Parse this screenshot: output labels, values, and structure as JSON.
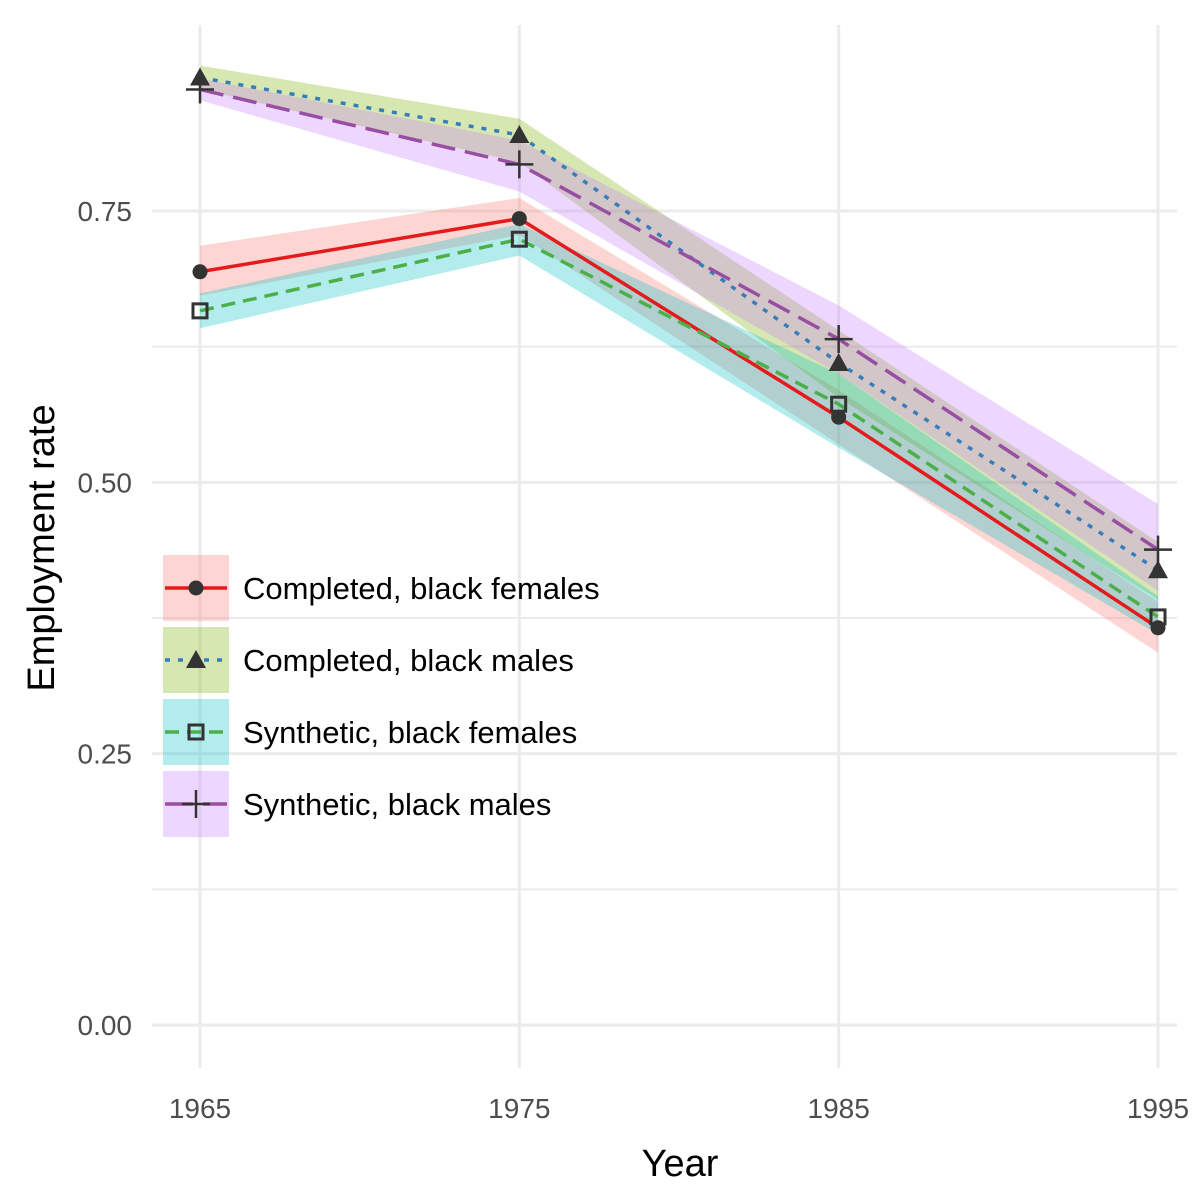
{
  "chart_data": {
    "type": "line",
    "xlabel": "Year",
    "ylabel": "Employment rate",
    "x": [
      1965,
      1975,
      1985,
      1995
    ],
    "xlim": [
      1965,
      1995
    ],
    "ylim": [
      0,
      0.8
    ],
    "x_ticks": [
      "1965",
      "1975",
      "1985",
      "1995"
    ],
    "y_ticks": [
      "0.00",
      "0.25",
      "0.50",
      "0.75"
    ],
    "grid": true,
    "legend_position": "left-center",
    "series": [
      {
        "name": "Completed, black females",
        "values": [
          0.694,
          0.743,
          0.56,
          0.366
        ],
        "lower": [
          0.672,
          0.728,
          0.535,
          0.343
        ],
        "upper": [
          0.718,
          0.762,
          0.585,
          0.39
        ],
        "line_color": "#e41a1c",
        "fill_color": "#f8766d",
        "dash": "solid",
        "marker": "circle"
      },
      {
        "name": "Completed, black males",
        "values": [
          0.873,
          0.82,
          0.61,
          0.419
        ],
        "lower": [
          0.862,
          0.795,
          0.578,
          0.392
        ],
        "upper": [
          0.884,
          0.835,
          0.64,
          0.445
        ],
        "line_color": "#377eb8",
        "fill_color": "#7cae00",
        "dash": "dotted",
        "marker": "triangle"
      },
      {
        "name": "Synthetic, black females",
        "values": [
          0.658,
          0.724,
          0.572,
          0.376
        ],
        "lower": [
          0.642,
          0.709,
          0.532,
          0.36
        ],
        "upper": [
          0.674,
          0.738,
          0.6,
          0.395
        ],
        "line_color": "#4daf4a",
        "fill_color": "#00bfc4",
        "dash": "dashed",
        "marker": "square"
      },
      {
        "name": "Synthetic, black males",
        "values": [
          0.862,
          0.793,
          0.632,
          0.438
        ],
        "lower": [
          0.852,
          0.768,
          0.6,
          0.4
        ],
        "upper": [
          0.872,
          0.815,
          0.663,
          0.48
        ],
        "line_color": "#984ea3",
        "fill_color": "#c77cff",
        "dash": "longdash",
        "marker": "plus"
      }
    ]
  }
}
